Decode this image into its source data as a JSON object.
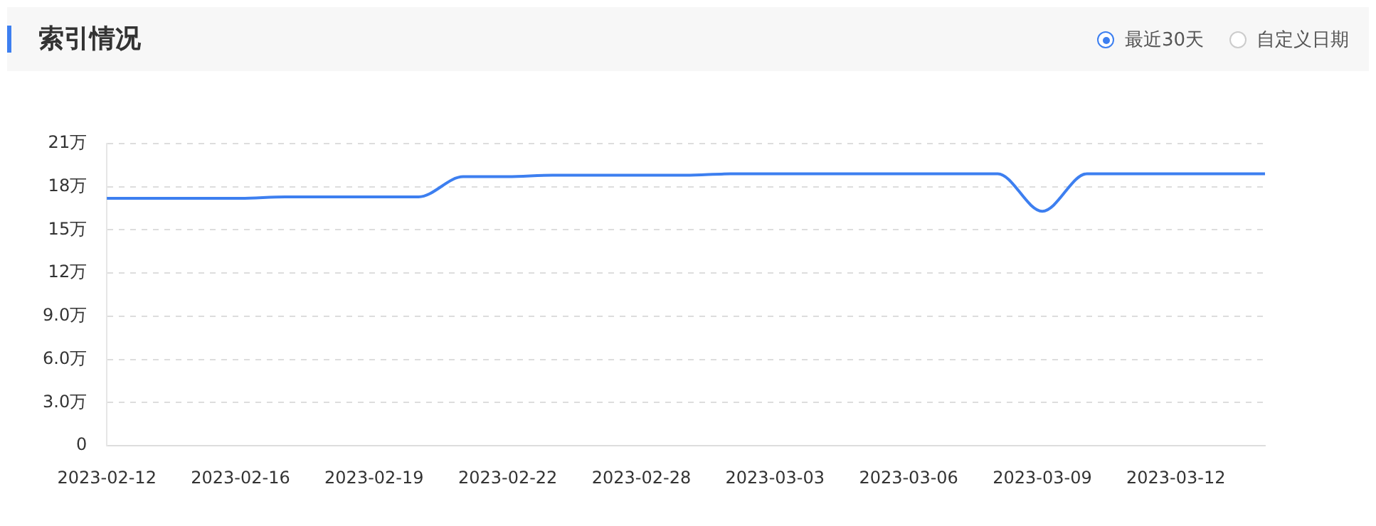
{
  "chart_data": {
    "type": "line",
    "title": "索引情况",
    "annotations": [
      "最近30天",
      "自定义日期"
    ],
    "categories": [
      "2023-02-12",
      null,
      null,
      "2023-02-16",
      null,
      null,
      "2023-02-19",
      null,
      null,
      "2023-02-22",
      null,
      null,
      "2023-02-28",
      null,
      null,
      "2023-03-03",
      null,
      null,
      "2023-03-06",
      null,
      null,
      "2023-03-09",
      null,
      null,
      "2023-03-12",
      null,
      null
    ],
    "series": [
      {
        "color": "#3d7ff0",
        "values": [
          17.2,
          17.2,
          17.2,
          17.2,
          17.3,
          17.3,
          17.3,
          17.3,
          18.7,
          18.7,
          18.8,
          18.8,
          18.8,
          18.8,
          18.9,
          18.9,
          18.9,
          18.9,
          18.9,
          18.9,
          18.9,
          16.3,
          18.9,
          18.9,
          18.9,
          18.9,
          18.9
        ]
      }
    ],
    "ylim": [
      0,
      21
    ],
    "yticks": [
      0,
      {
        "value": 3,
        "label": "3.0万"
      },
      {
        "value": 6,
        "label": "6.0万"
      },
      {
        "value": 9,
        "label": "9.0万"
      },
      {
        "value": 12,
        "label": "12万"
      },
      {
        "value": 15,
        "label": "15万"
      },
      {
        "value": 18,
        "label": "18万"
      },
      {
        "value": 21,
        "label": "21万"
      }
    ],
    "grid": "y",
    "legend": false,
    "marker": "none",
    "line_style": "solid"
  }
}
